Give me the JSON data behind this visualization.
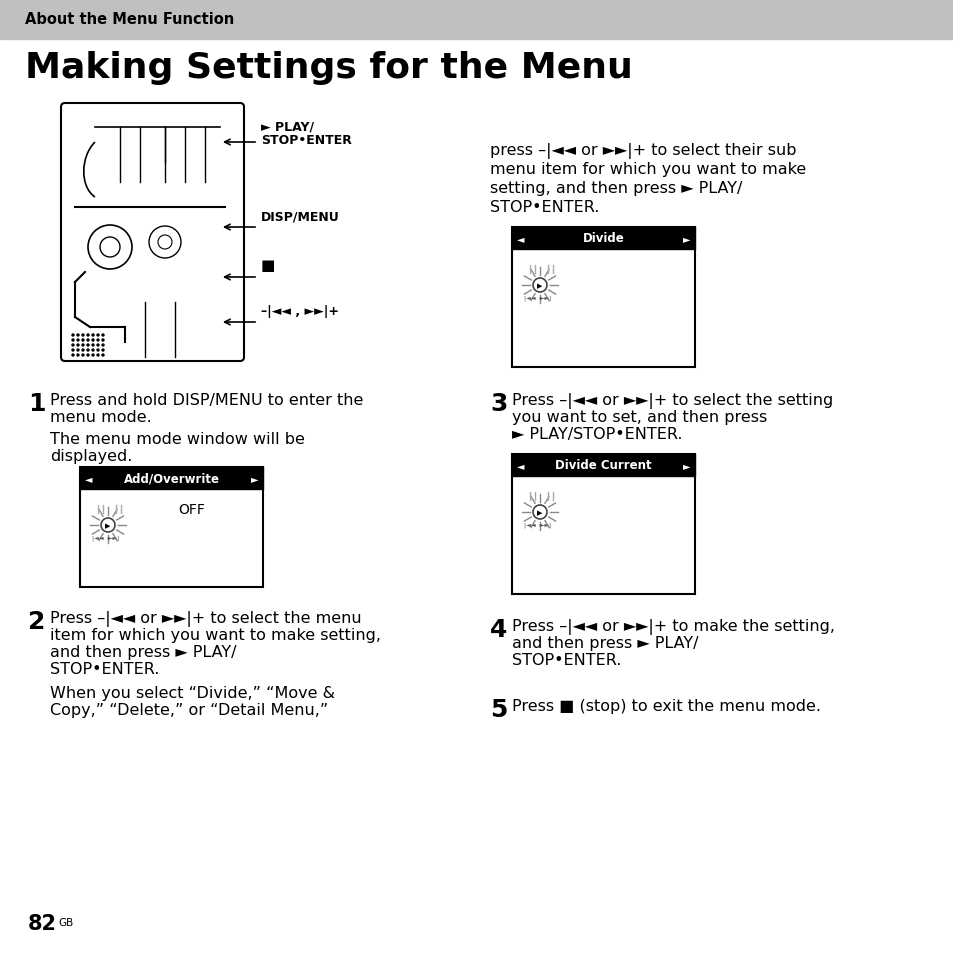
{
  "page_bg": "#ffffff",
  "header_bg": "#c0c0c0",
  "header_text": "About the Menu Function",
  "title": "Making Settings for the Menu",
  "page_number": "82",
  "page_number_suffix": "GB",
  "step1_num": "1",
  "step1_lines": [
    "Press and hold DISP/MENU to enter the",
    "menu mode.",
    "The menu mode window will be",
    "displayed."
  ],
  "step2_num": "2",
  "step2_lines": [
    "Press –|◄◄ or ►►|+ to select the menu",
    "item for which you want to make setting,",
    "and then press ► PLAY/",
    "STOP•ENTER.",
    "When you select “Divide,” “Move &",
    "Copy,” “Delete,” or “Detail Menu,”"
  ],
  "step3_num": "3",
  "step3_lines": [
    "Press –|◄◄ or ►►|+ to select the setting",
    "you want to set, and then press",
    "► PLAY/STOP•ENTER."
  ],
  "step4_num": "4",
  "step4_lines": [
    "Press –|◄◄ or ►►|+ to make the setting,",
    "and then press ► PLAY/",
    "STOP•ENTER."
  ],
  "step5_num": "5",
  "step5_text": "Press ■ (stop) to exit the menu mode.",
  "right_intro_lines": [
    "press –|◄◄ or ►►|+ to select their sub",
    "menu item for which you want to make",
    "setting, and then press ► PLAY/",
    "STOP•ENTER."
  ],
  "menu_label1": "Add/Overwrite",
  "menu_label1_sub": "OFF",
  "menu_label2": "Divide",
  "menu_label3": "Divide Current",
  "diag_label1a": "► PLAY/",
  "diag_label1b": "STOP•ENTER",
  "diag_label2": "DISP/MENU",
  "diag_label3": "■",
  "diag_label4": "–|◄◄ , ►►|+"
}
